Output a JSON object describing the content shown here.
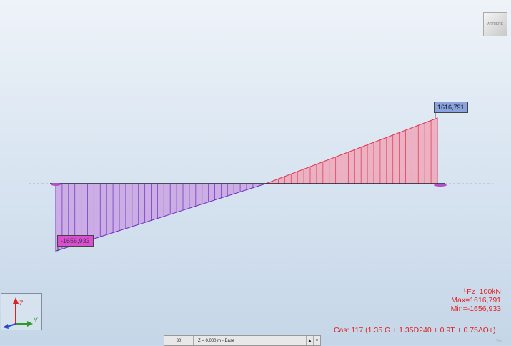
{
  "diagram": {
    "max_label": "1616,791",
    "min_label": "-1656,933",
    "max_value": 1616.791,
    "min_value": -1656.933,
    "beam_x_range": [
      0,
      1
    ],
    "zero_crossing_fraction": 0.55
  },
  "viewcube": {
    "text": "ARRIERE"
  },
  "axes": {
    "z": "Z",
    "y": "Y",
    "x": "X"
  },
  "legend": {
    "component": "Fz",
    "unit_scale": "100kN",
    "max_text": "Max=1616,791",
    "min_text": "Min=-1656,933"
  },
  "case": "Cas: 117 (1.35 G + 1.35D240 + 0.9T + 0.75ΔΘ+)",
  "bottom_bar": {
    "number": "30",
    "level": "Z = 0,000 m - Base",
    "up_arrow": "▲",
    "down_arrow": "▼"
  },
  "status": {
    "view": "Vue"
  },
  "colors": {
    "positive_fill": "#f2a0b4",
    "positive_line": "#e0364f",
    "negative_fill": "#c89be0",
    "negative_line": "#6a2fc4",
    "axis_line": "#1a1a2e",
    "text_red": "#e02020"
  }
}
